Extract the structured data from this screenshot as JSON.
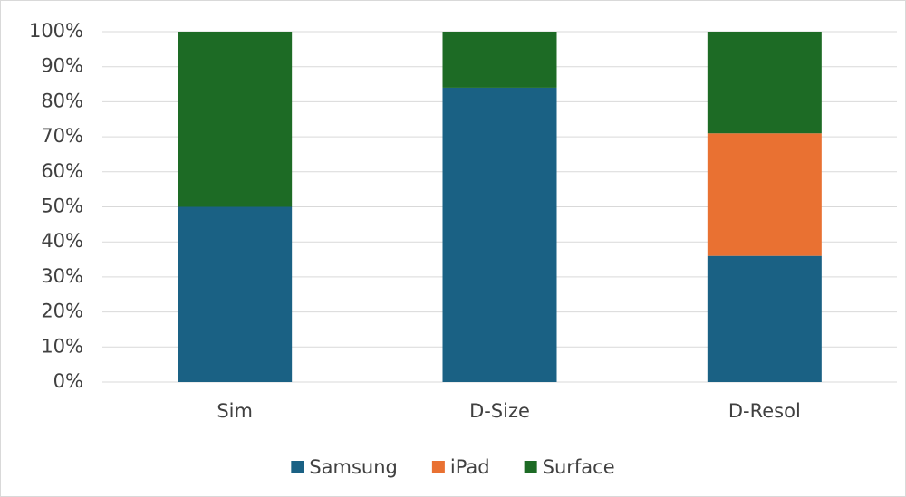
{
  "chart_data": {
    "type": "stacked_bar",
    "categories": [
      "Sim",
      "D-Size",
      "D-Resol"
    ],
    "series": [
      {
        "name": "Samsung",
        "color": "#1a6184",
        "values": [
          50,
          84,
          36
        ]
      },
      {
        "name": "iPad",
        "color": "#e97132",
        "values": [
          0,
          0,
          35
        ]
      },
      {
        "name": "Surface",
        "color": "#1d6b25",
        "values": [
          50,
          16,
          29
        ]
      }
    ],
    "ylim": [
      0,
      100
    ],
    "yticks": [
      {
        "value": 0,
        "label": "0%"
      },
      {
        "value": 10,
        "label": "10%"
      },
      {
        "value": 20,
        "label": "20%"
      },
      {
        "value": 30,
        "label": "30%"
      },
      {
        "value": 40,
        "label": "40%"
      },
      {
        "value": 50,
        "label": "50%"
      },
      {
        "value": 60,
        "label": "60%"
      },
      {
        "value": 70,
        "label": "70%"
      },
      {
        "value": 80,
        "label": "80%"
      },
      {
        "value": 90,
        "label": "90%"
      },
      {
        "value": 100,
        "label": "100%"
      }
    ],
    "grid": true,
    "legend": "bottom"
  }
}
